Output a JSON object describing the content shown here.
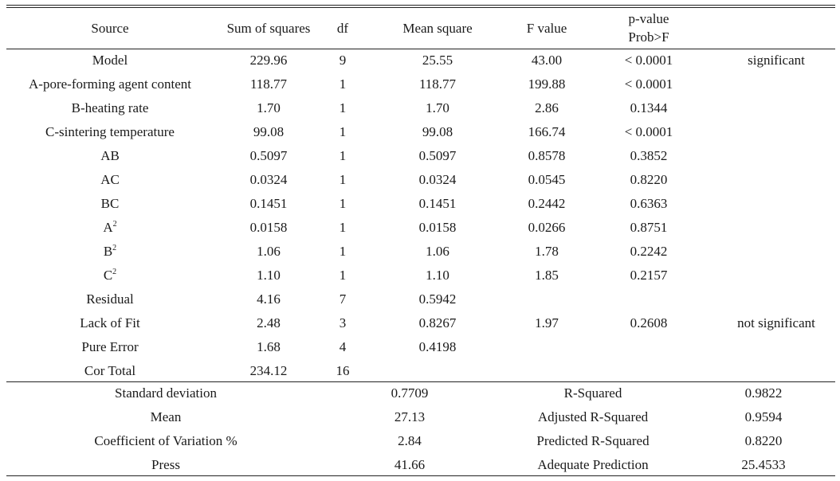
{
  "anova": {
    "headers": {
      "source": "Source",
      "sum_of_squares": "Sum of squares",
      "df": "df",
      "mean_square": "Mean square",
      "f_value": "F value",
      "p_value_line1": "p-value",
      "p_value_line2": "Prob>F"
    },
    "rows": [
      {
        "source": "Model",
        "sup": "",
        "ss": "229.96",
        "df": "9",
        "ms": "25.55",
        "f": "43.00",
        "p": "< 0.0001",
        "note": "significant"
      },
      {
        "source": "A-pore-forming agent content",
        "sup": "",
        "ss": "118.77",
        "df": "1",
        "ms": "118.77",
        "f": "199.88",
        "p": "< 0.0001",
        "note": ""
      },
      {
        "source": "B-heating rate",
        "sup": "",
        "ss": "1.70",
        "df": "1",
        "ms": "1.70",
        "f": "2.86",
        "p": "0.1344",
        "note": ""
      },
      {
        "source": "C-sintering temperature",
        "sup": "",
        "ss": "99.08",
        "df": "1",
        "ms": "99.08",
        "f": "166.74",
        "p": "< 0.0001",
        "note": ""
      },
      {
        "source": "AB",
        "sup": "",
        "ss": "0.5097",
        "df": "1",
        "ms": "0.5097",
        "f": "0.8578",
        "p": "0.3852",
        "note": ""
      },
      {
        "source": "AC",
        "sup": "",
        "ss": "0.0324",
        "df": "1",
        "ms": "0.0324",
        "f": "0.0545",
        "p": "0.8220",
        "note": ""
      },
      {
        "source": "BC",
        "sup": "",
        "ss": "0.1451",
        "df": "1",
        "ms": "0.1451",
        "f": "0.2442",
        "p": "0.6363",
        "note": ""
      },
      {
        "source": "A",
        "sup": "2",
        "ss": "0.0158",
        "df": "1",
        "ms": "0.0158",
        "f": "0.0266",
        "p": "0.8751",
        "note": ""
      },
      {
        "source": "B",
        "sup": "2",
        "ss": "1.06",
        "df": "1",
        "ms": "1.06",
        "f": "1.78",
        "p": "0.2242",
        "note": ""
      },
      {
        "source": "C",
        "sup": "2",
        "ss": "1.10",
        "df": "1",
        "ms": "1.10",
        "f": "1.85",
        "p": "0.2157",
        "note": ""
      },
      {
        "source": "Residual",
        "sup": "",
        "ss": "4.16",
        "df": "7",
        "ms": "0.5942",
        "f": "",
        "p": "",
        "note": ""
      },
      {
        "source": "Lack of Fit",
        "sup": "",
        "ss": "2.48",
        "df": "3",
        "ms": "0.8267",
        "f": "1.97",
        "p": "0.2608",
        "note": "not significant"
      },
      {
        "source": "Pure Error",
        "sup": "",
        "ss": "1.68",
        "df": "4",
        "ms": "0.4198",
        "f": "",
        "p": "",
        "note": ""
      },
      {
        "source": "Cor Total",
        "sup": "",
        "ss": "234.12",
        "df": "16",
        "ms": "",
        "f": "",
        "p": "",
        "note": ""
      }
    ]
  },
  "fit_stats": [
    {
      "label": "Standard deviation",
      "value": "0.7709",
      "label2": "R-Squared",
      "value2": "0.9822"
    },
    {
      "label": "Mean",
      "value": "27.13",
      "label2": "Adjusted R-Squared",
      "value2": "0.9594"
    },
    {
      "label": "Coefficient of Variation %",
      "value": "2.84",
      "label2": "Predicted R-Squared",
      "value2": "0.8220"
    },
    {
      "label": "Press",
      "value": "41.66",
      "label2": "Adequate Prediction",
      "value2": "25.4533"
    }
  ]
}
